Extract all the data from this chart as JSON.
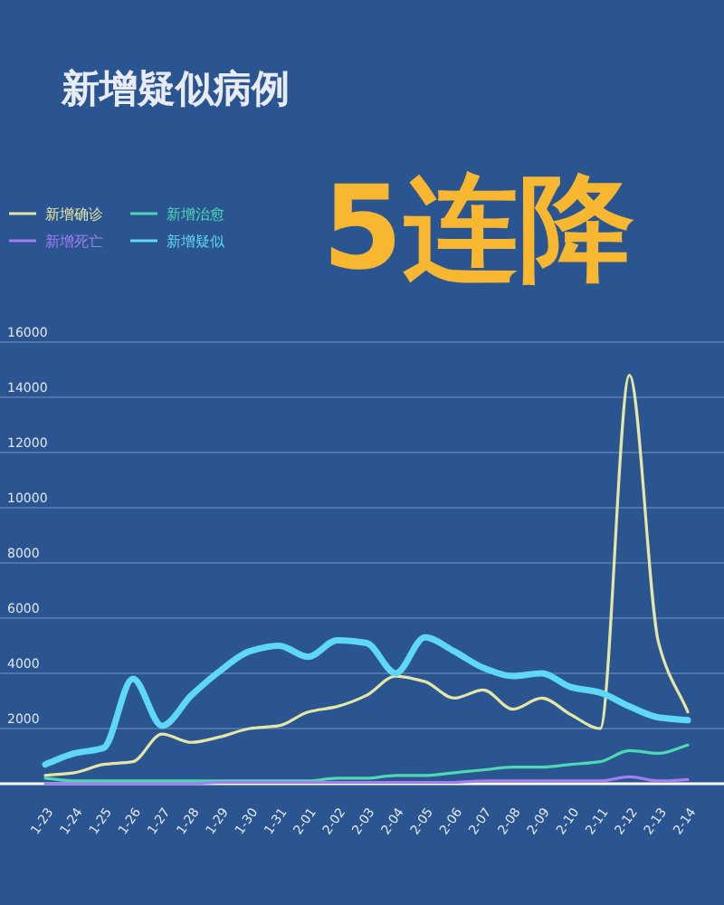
{
  "chart_data": {
    "type": "line",
    "title": "新增疑似病例",
    "subtitle": "5连降",
    "categories": [
      "1-23",
      "1-24",
      "1-25",
      "1-26",
      "1-27",
      "1-28",
      "1-29",
      "1-30",
      "1-31",
      "2-01",
      "2-02",
      "2-03",
      "2-04",
      "2-05",
      "2-06",
      "2-07",
      "2-08",
      "2-09",
      "2-10",
      "2-11",
      "2-12",
      "2-13",
      "2-14"
    ],
    "series": [
      {
        "name": "新增确诊",
        "color": "#e4e6a6",
        "values": [
          300,
          400,
          700,
          800,
          1800,
          1500,
          1700,
          2000,
          2100,
          2600,
          2800,
          3200,
          3900,
          3700,
          3100,
          3400,
          2700,
          3100,
          2500,
          2000,
          14800,
          5100,
          2600
        ]
      },
      {
        "name": "新增治愈",
        "color": "#4fd8b4",
        "values": [
          200,
          100,
          100,
          100,
          100,
          100,
          100,
          100,
          100,
          100,
          200,
          200,
          300,
          300,
          400,
          500,
          600,
          600,
          700,
          800,
          1200,
          1100,
          1400
        ]
      },
      {
        "name": "新增死亡",
        "color": "#a27ef0",
        "values": [
          0,
          0,
          0,
          0,
          0,
          0,
          50,
          50,
          50,
          50,
          50,
          50,
          50,
          50,
          50,
          100,
          100,
          100,
          100,
          100,
          250,
          100,
          150
        ]
      },
      {
        "name": "新增疑似",
        "color": "#5fd8f8",
        "values": [
          700,
          1100,
          1300,
          3800,
          2100,
          3200,
          4100,
          4800,
          5000,
          4600,
          5200,
          5100,
          4000,
          5300,
          4800,
          4200,
          3900,
          4000,
          3500,
          3300,
          2800,
          2400,
          2300
        ]
      }
    ],
    "ylim": [
      0,
      16000
    ],
    "yticks": [
      2000,
      4000,
      6000,
      8000,
      10000,
      12000,
      14000,
      16000
    ],
    "grid": "y",
    "legend": "top left"
  }
}
